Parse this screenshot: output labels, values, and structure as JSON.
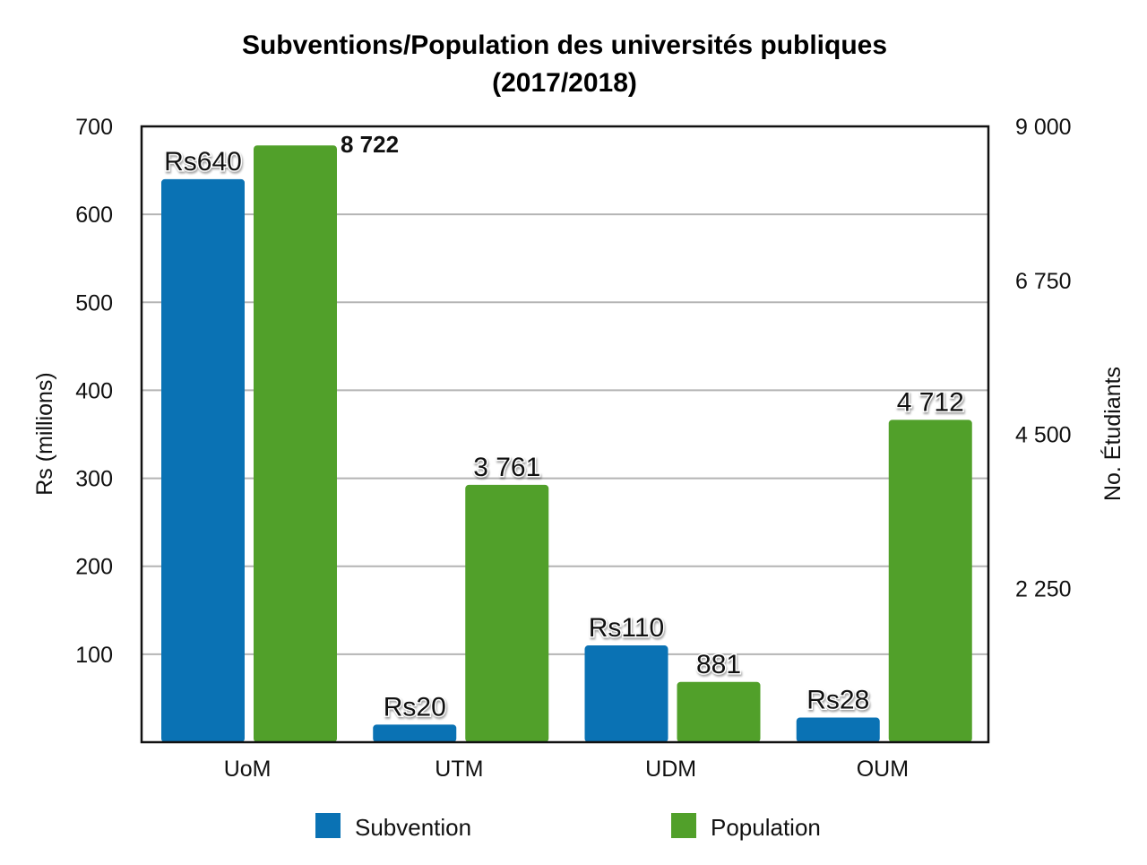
{
  "chart_data": {
    "type": "bar",
    "title_line1": "Subventions/Population des universités publiques",
    "title_line2": "(2017/2018)",
    "categories": [
      "UoM",
      "UTM",
      "UDM",
      "OUM"
    ],
    "ylabel_left": "Rs (millions)",
    "ylabel_right": "No. Étudiants",
    "y_left_range": [
      0,
      700
    ],
    "y_right_range": [
      0,
      9000
    ],
    "y_left_ticks": [
      100,
      200,
      300,
      400,
      500,
      600,
      700
    ],
    "y_right_ticks": [
      {
        "value": 2250,
        "label": "2 250"
      },
      {
        "value": 4500,
        "label": "4 500"
      },
      {
        "value": 6750,
        "label": "6 750"
      },
      {
        "value": 9000,
        "label": "9 000"
      }
    ],
    "grid": true,
    "legend_position": "bottom",
    "series": [
      {
        "name": "Subvention",
        "axis": "left",
        "color": "#0a72b4",
        "values": [
          640,
          20,
          110,
          28
        ],
        "labels": [
          "Rs640",
          "Rs20",
          "Rs110",
          "Rs28"
        ]
      },
      {
        "name": "Population",
        "axis": "right",
        "color": "#51a02a",
        "values": [
          8722,
          3761,
          881,
          4712
        ],
        "labels": [
          "8 722",
          "3 761",
          "881",
          "4 712"
        ]
      }
    ]
  }
}
